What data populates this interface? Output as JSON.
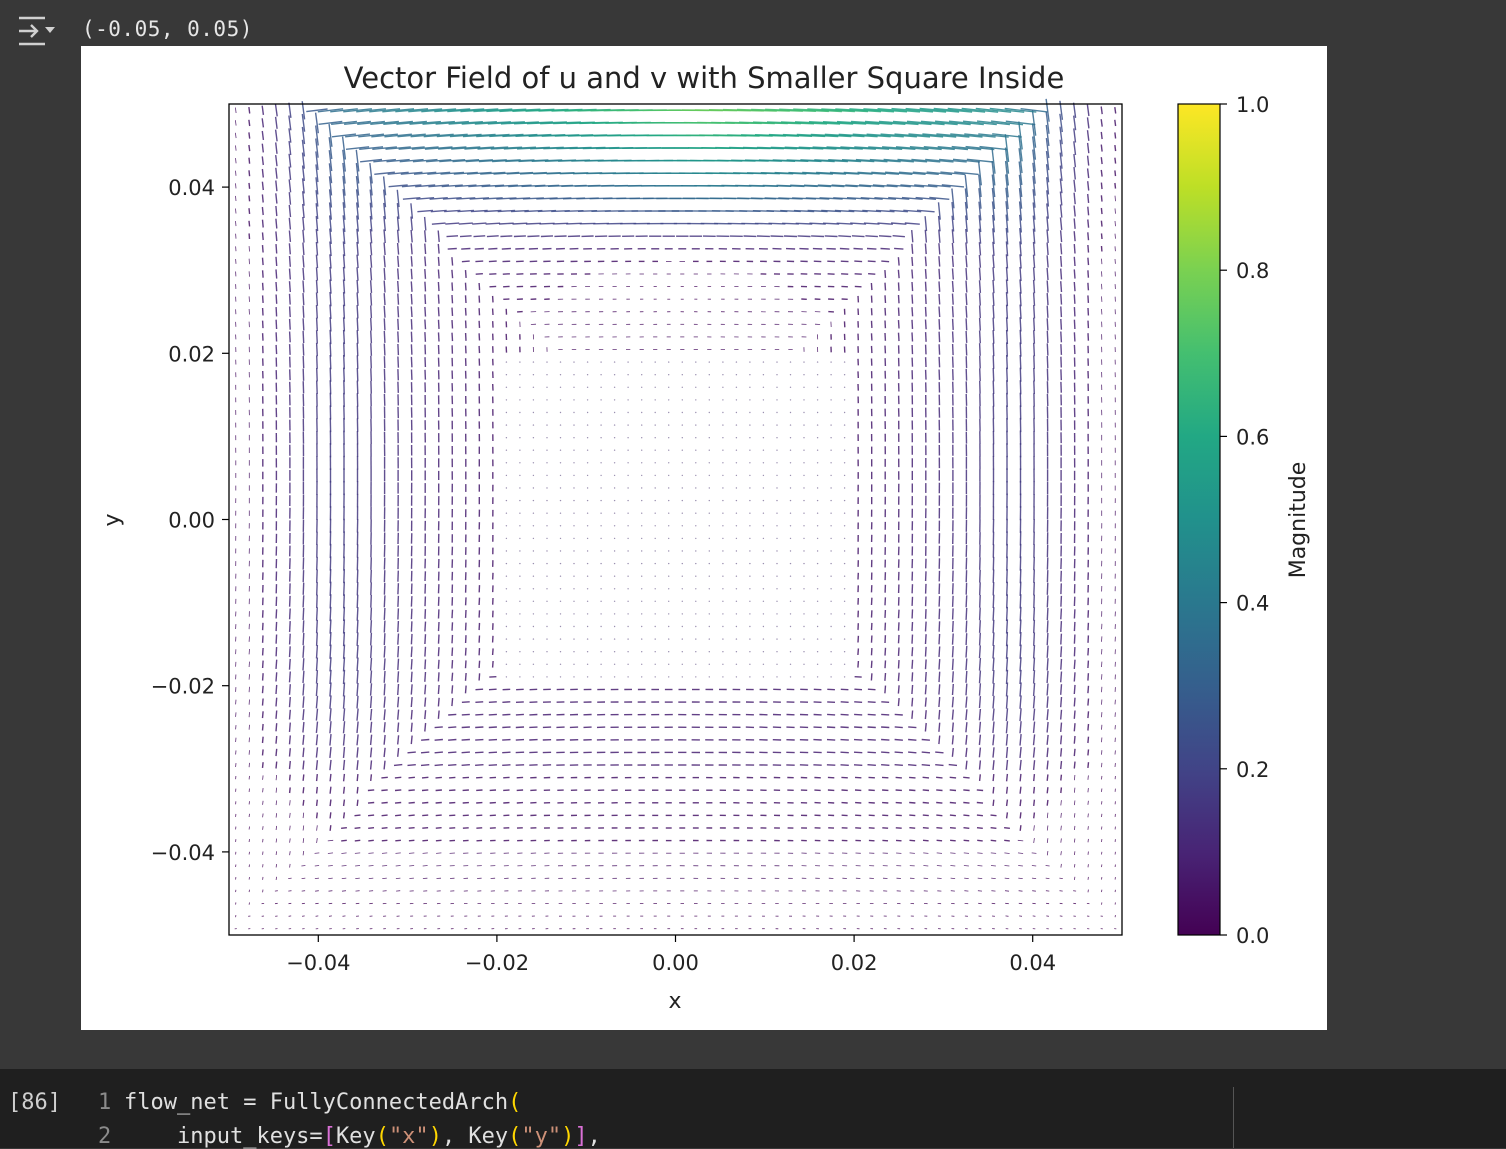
{
  "output": {
    "toggle_icon": "collapse-output-icon",
    "text": "(-0.05, 0.05)"
  },
  "chart_data": {
    "type": "vector-field",
    "title": "Vector Field of u and v with Smaller Square Inside",
    "xlabel": "x",
    "ylabel": "y",
    "xlim": [
      -0.05,
      0.05
    ],
    "ylim": [
      -0.05,
      0.05
    ],
    "xticks": [
      -0.04,
      -0.02,
      0.0,
      0.02,
      0.04
    ],
    "yticks": [
      -0.04,
      -0.02,
      0.0,
      0.02,
      0.04
    ],
    "xtick_labels": [
      "−0.04",
      "−0.02",
      "0.00",
      "0.02",
      "0.04"
    ],
    "ytick_labels": [
      "−0.04",
      "−0.02",
      "0.00",
      "0.02",
      "0.04"
    ],
    "inner_square": {
      "x": [
        -0.02,
        0.02
      ],
      "y": [
        -0.02,
        0.02
      ]
    },
    "grid": false,
    "colormap": "viridis",
    "colorbar": {
      "label": "Magnitude",
      "range": [
        0.0,
        1.0
      ],
      "ticks": [
        0.0,
        0.2,
        0.4,
        0.6,
        0.8,
        1.0
      ],
      "tick_labels": [
        "0.0",
        "0.2",
        "0.4",
        "0.6",
        "0.8",
        "1.0"
      ]
    }
  },
  "cell": {
    "execution_count": "[86]",
    "lines": [
      {
        "no": "1",
        "text": "flow_net = FullyConnectedArch("
      },
      {
        "no": "2",
        "text": "    input_keys=[Key(\"x\"), Key(\"y\")],"
      }
    ]
  }
}
